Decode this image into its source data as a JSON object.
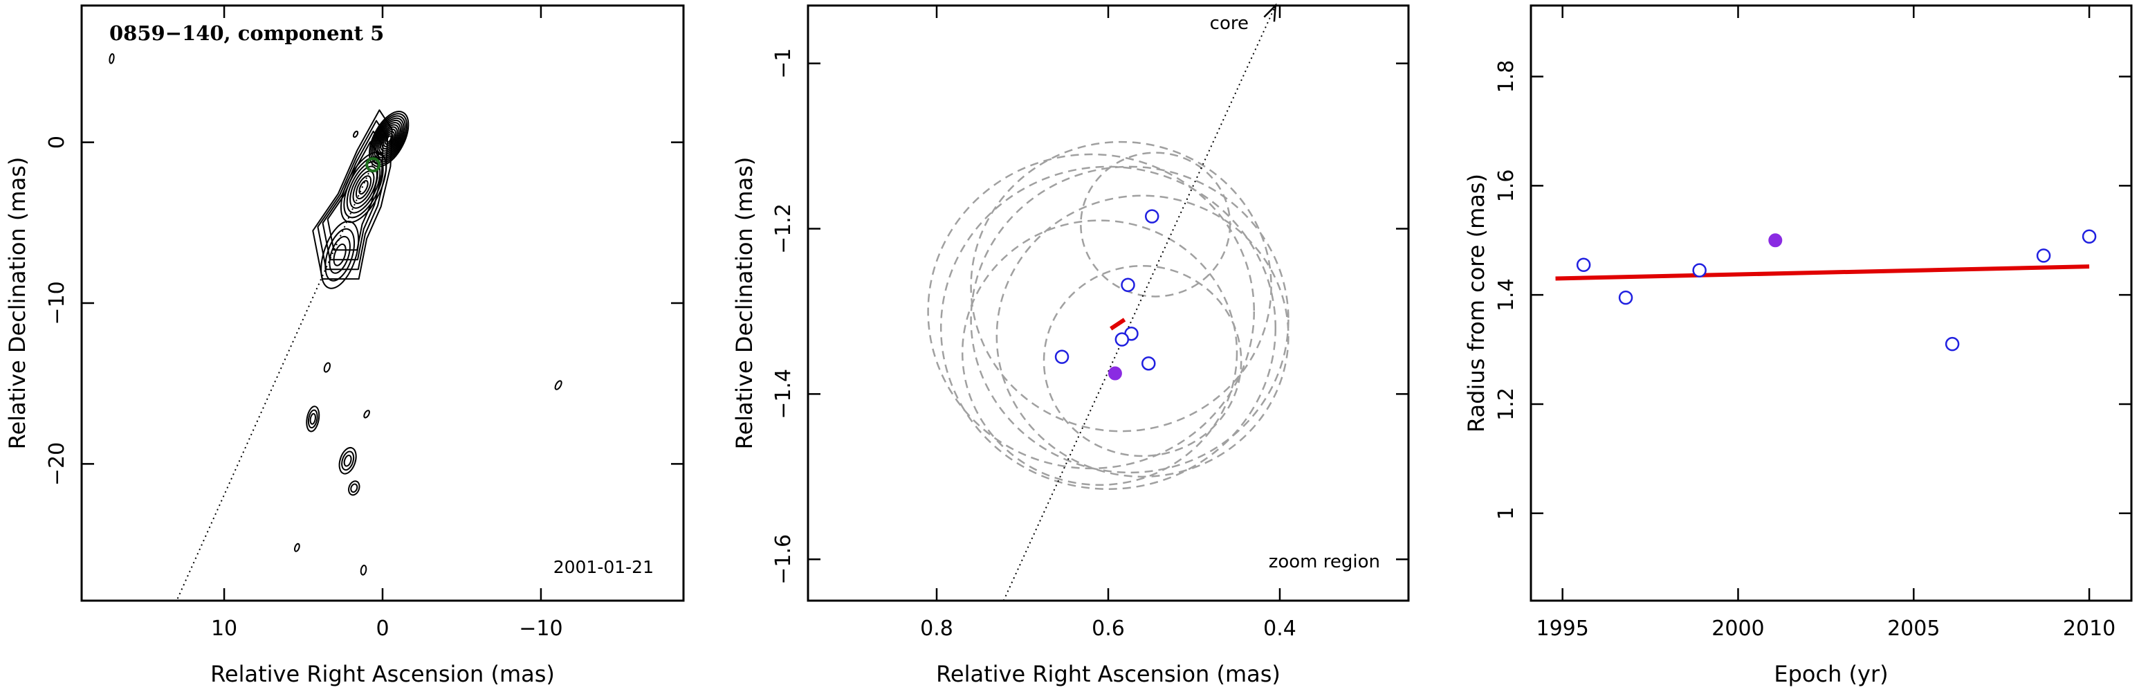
{
  "chart_data": [
    {
      "type": "contour",
      "title": "0859−140, component 5",
      "xlabel": "Relative Right Ascension (mas)",
      "ylabel": "Relative Declination (mas)",
      "xlim": [
        19,
        -19
      ],
      "ylim": [
        -28.5,
        8.5
      ],
      "xticks": [
        10,
        0,
        -10
      ],
      "yticks": [
        0,
        -10,
        -20
      ],
      "xtick_labels": [
        "10",
        "0",
        "−10"
      ],
      "ytick_labels": [
        "0",
        "−10",
        "−20"
      ],
      "annotation": "2001-01-21",
      "component_marker": {
        "x": 0.6,
        "y": -1.4,
        "color": "#1f6f1f"
      },
      "jet_direction_line": {
        "x": [
          0,
          13
        ],
        "y": [
          0,
          -28.5
        ]
      },
      "contour_levels": 12
    },
    {
      "type": "scatter",
      "xlabel": "Relative Right Ascension (mas)",
      "ylabel": "Relative Declination (mas)",
      "xlim": [
        0.95,
        0.25
      ],
      "ylim": [
        -1.65,
        -0.93
      ],
      "xticks": [
        0.8,
        0.6,
        0.4
      ],
      "yticks": [
        -1,
        -1.2,
        -1.4,
        -1.6
      ],
      "xtick_labels": [
        "0.8",
        "0.6",
        "0.4"
      ],
      "ytick_labels": [
        "−1",
        "−1.2",
        "−1.4",
        "−1.6"
      ],
      "annotations": [
        "core",
        "zoom region"
      ],
      "open_points": [
        {
          "x": 0.549,
          "y": -1.185
        },
        {
          "x": 0.577,
          "y": -1.268
        },
        {
          "x": 0.573,
          "y": -1.327
        },
        {
          "x": 0.584,
          "y": -1.334
        },
        {
          "x": 0.654,
          "y": -1.355
        },
        {
          "x": 0.553,
          "y": -1.363
        }
      ],
      "filled_point": {
        "x": 0.592,
        "y": -1.375
      },
      "fit_segment": {
        "x": [
          0.597,
          0.581
        ],
        "y": [
          -1.321,
          -1.31
        ]
      },
      "core_direction_line": {
        "x": [
          0.722,
          0.405
        ],
        "y": [
          -1.65,
          -0.93
        ]
      },
      "error_circles": [
        {
          "cx": 0.545,
          "cy": -1.195,
          "r": 0.087
        },
        {
          "cx": 0.56,
          "cy": -1.36,
          "r": 0.115
        },
        {
          "cx": 0.575,
          "cy": -1.31,
          "r": 0.185
        },
        {
          "cx": 0.6,
          "cy": -1.32,
          "r": 0.195
        },
        {
          "cx": 0.585,
          "cy": -1.27,
          "r": 0.175
        },
        {
          "cx": 0.61,
          "cy": -1.35,
          "r": 0.16
        },
        {
          "cx": 0.62,
          "cy": -1.3,
          "r": 0.19
        },
        {
          "cx": 0.56,
          "cy": -1.33,
          "r": 0.17
        }
      ],
      "colors": {
        "open": "#2020e0",
        "filled": "#8a2be2",
        "fit": "#e00000",
        "circle": "#a0a0a0"
      }
    },
    {
      "type": "scatter",
      "xlabel": "Epoch (yr)",
      "ylabel": "Radius from core (mas)",
      "xlim": [
        1994.1,
        2011.2
      ],
      "ylim": [
        0.84,
        1.93
      ],
      "xticks": [
        1995,
        2000,
        2005,
        2010
      ],
      "yticks": [
        1,
        1.2,
        1.4,
        1.6,
        1.8
      ],
      "xtick_labels": [
        "1995",
        "2000",
        "2005",
        "2010"
      ],
      "ytick_labels": [
        "1",
        "1.2",
        "1.4",
        "1.6",
        "1.8"
      ],
      "open_points": [
        {
          "x": 1995.6,
          "y": 1.455
        },
        {
          "x": 1996.8,
          "y": 1.395
        },
        {
          "x": 1998.9,
          "y": 1.445
        },
        {
          "x": 2006.1,
          "y": 1.31
        },
        {
          "x": 2008.7,
          "y": 1.472
        },
        {
          "x": 2010.0,
          "y": 1.507
        }
      ],
      "filled_point": {
        "x": 2001.06,
        "y": 1.5
      },
      "fit_line": {
        "x": [
          1994.8,
          2010.0
        ],
        "y": [
          1.43,
          1.452
        ]
      },
      "colors": {
        "open": "#2020e0",
        "filled": "#8a2be2",
        "fit": "#e00000"
      }
    }
  ]
}
